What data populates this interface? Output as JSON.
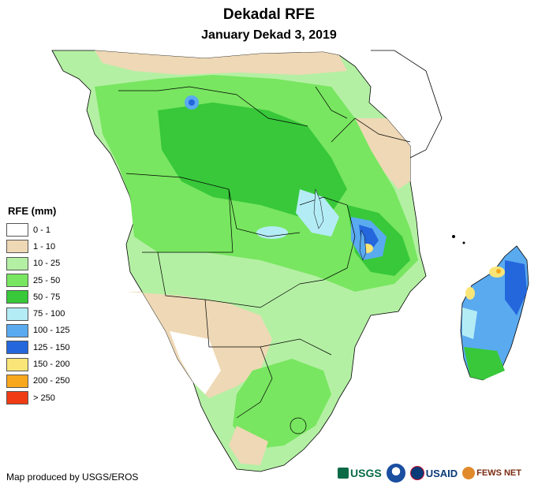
{
  "title": "Dekadal RFE",
  "subtitle": "January Dekad 3, 2019",
  "legend": {
    "title": "RFE (mm)",
    "items": [
      {
        "label": "0 - 1",
        "color": "#ffffff"
      },
      {
        "label": "1 - 10",
        "color": "#eed8b5"
      },
      {
        "label": "10 - 25",
        "color": "#b4f0a4"
      },
      {
        "label": "25 - 50",
        "color": "#78e660"
      },
      {
        "label": "50 - 75",
        "color": "#38c83a"
      },
      {
        "label": "75 - 100",
        "color": "#b4ecf6"
      },
      {
        "label": "100 - 125",
        "color": "#5aaaf0"
      },
      {
        "label": "125 - 150",
        "color": "#2466dc"
      },
      {
        "label": "150 - 200",
        "color": "#fae678"
      },
      {
        "label": "200 - 250",
        "color": "#f8a81c"
      },
      {
        "label": "> 250",
        "color": "#f03c14"
      }
    ]
  },
  "credit": "Map produced by USGS/EROS",
  "logos": {
    "usgs": "USGS",
    "usaid": "USAID",
    "fews": "FEWS NET"
  }
}
